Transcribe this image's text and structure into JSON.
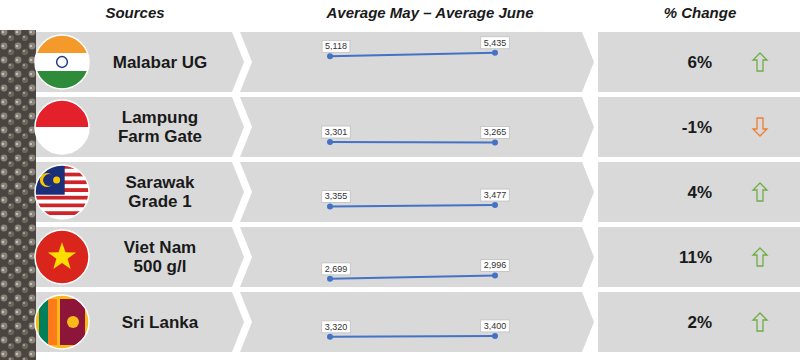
{
  "chart_data": {
    "type": "slope",
    "columns": [
      "Sources",
      "Average May – Average June",
      "% Change"
    ],
    "categories": [
      "Malabar UG",
      "Lampung Farm Gate",
      "Sarawak Grade 1",
      "Viet Nam 500 g/l",
      "Sri Lanka"
    ],
    "series": [
      {
        "values": [
          5118,
          3301,
          3355,
          2699,
          3320
        ],
        "value_labels": [
          "5,118",
          "3,301",
          "3,355",
          "2,699",
          "3,320"
        ]
      },
      {
        "values": [
          5435,
          3265,
          3477,
          2996,
          3400
        ],
        "value_labels": [
          "5,435",
          "3,265",
          "3,477",
          "2,996",
          "3,400"
        ]
      }
    ],
    "change": {
      "values": [
        6,
        -1,
        4,
        11,
        2
      ],
      "value_labels": [
        "6%",
        "-1%",
        "4%",
        "11%",
        "2%"
      ]
    },
    "color": "#4472c4",
    "ylim": [
      2600,
      5500
    ],
    "data_labels": true,
    "tick_labels": false
  }
}
